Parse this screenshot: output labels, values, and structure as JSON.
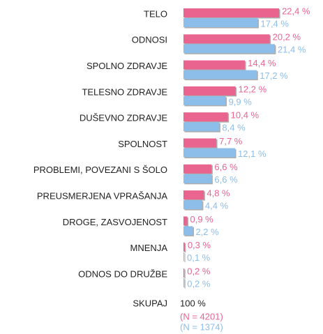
{
  "chart_data": {
    "type": "bar",
    "orientation": "horizontal",
    "categories": [
      "TELO",
      "ODNOSI",
      "SPOLNO ZDRAVJE",
      "TELESNO ZDRAVJE",
      "DUŠEVNO ZDRAVJE",
      "SPOLNOST",
      "PROBLEMI, POVEZANI S ŠOLO",
      "PREUSMERJENA VPRAŠANJA",
      "DROGE, ZASVOJENOST",
      "MNENJA",
      "ODNOS DO DRUŽBE"
    ],
    "series": [
      {
        "color": "#e9648e",
        "values": [
          22.4,
          20.2,
          14.4,
          12.2,
          10.4,
          7.7,
          6.6,
          4.8,
          0.9,
          0.3,
          0.2
        ],
        "value_labels": [
          "22,4 %",
          "20,2 %",
          "14,4 %",
          "12,2 %",
          "10,4 %",
          "7,7 %",
          "6,6 %",
          "4,8 %",
          "0,9 %",
          "0,3 %",
          "0,2 %"
        ],
        "n_label": "(N = 4201)"
      },
      {
        "color": "#8dbde9",
        "values": [
          17.4,
          21.4,
          17.2,
          9.9,
          8.4,
          12.1,
          6.6,
          4.4,
          2.2,
          0.1,
          0.2
        ],
        "value_labels": [
          "17,4 %",
          "21,4 %",
          "17,2 %",
          "9,9 %",
          "8,4 %",
          "12,1 %",
          "6,6 %",
          "4,4 %",
          "2,2 %",
          "0,1 %",
          "0,2 %"
        ],
        "n_label": "(N = 1374)"
      }
    ],
    "xlim": [
      0,
      25
    ],
    "total_label": "SKUPAJ",
    "total_value": "100 %"
  }
}
